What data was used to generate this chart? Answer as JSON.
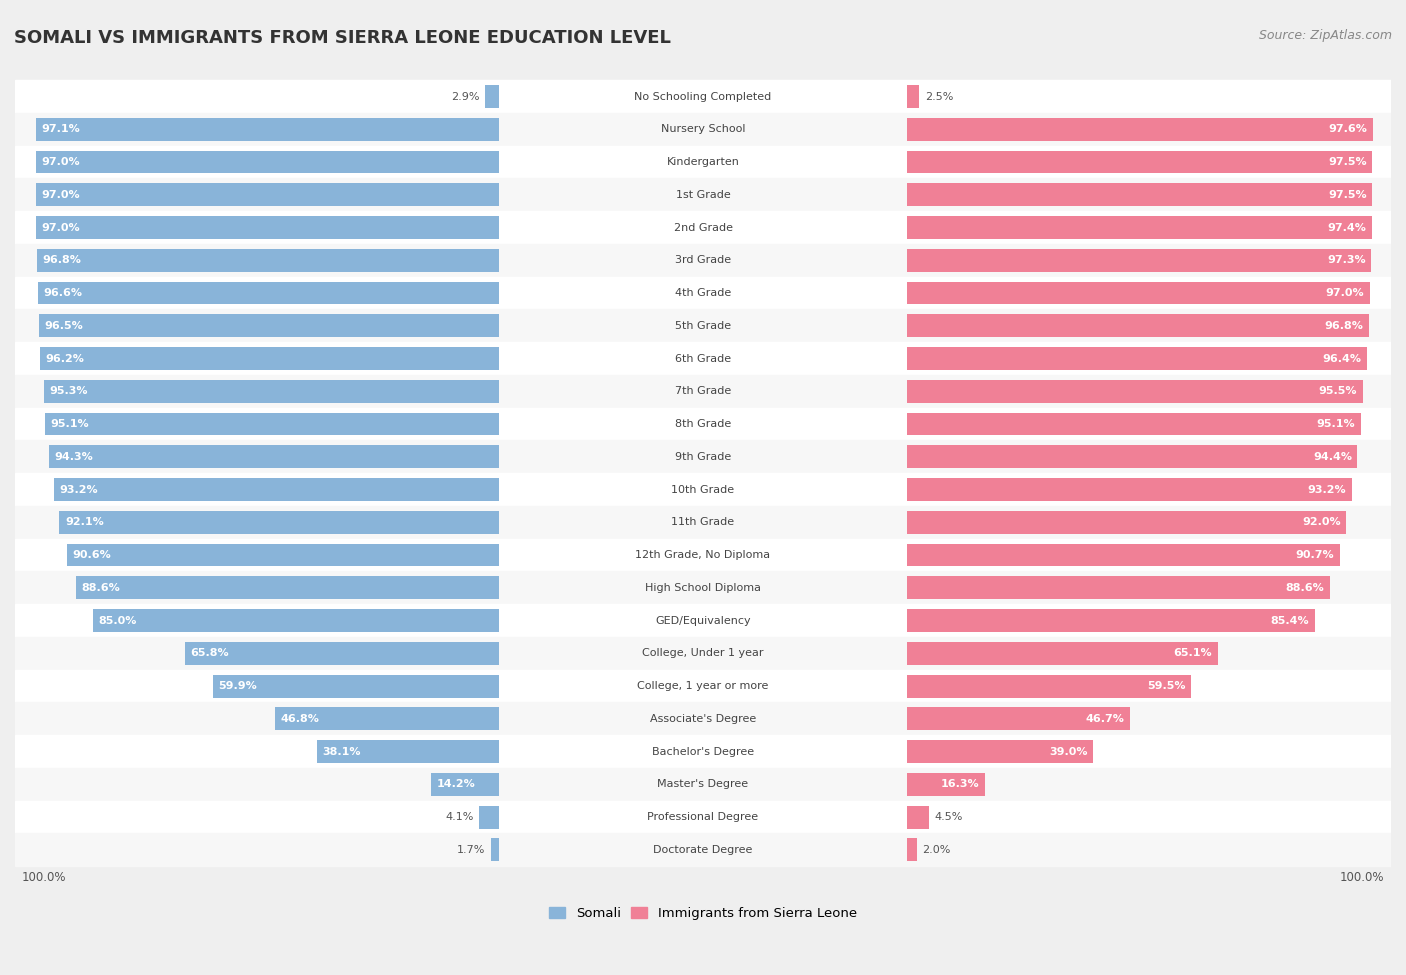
{
  "title": "SOMALI VS IMMIGRANTS FROM SIERRA LEONE EDUCATION LEVEL",
  "source": "Source: ZipAtlas.com",
  "categories": [
    "No Schooling Completed",
    "Nursery School",
    "Kindergarten",
    "1st Grade",
    "2nd Grade",
    "3rd Grade",
    "4th Grade",
    "5th Grade",
    "6th Grade",
    "7th Grade",
    "8th Grade",
    "9th Grade",
    "10th Grade",
    "11th Grade",
    "12th Grade, No Diploma",
    "High School Diploma",
    "GED/Equivalency",
    "College, Under 1 year",
    "College, 1 year or more",
    "Associate's Degree",
    "Bachelor's Degree",
    "Master's Degree",
    "Professional Degree",
    "Doctorate Degree"
  ],
  "somali": [
    2.9,
    97.1,
    97.0,
    97.0,
    97.0,
    96.8,
    96.6,
    96.5,
    96.2,
    95.3,
    95.1,
    94.3,
    93.2,
    92.1,
    90.6,
    88.6,
    85.0,
    65.8,
    59.9,
    46.8,
    38.1,
    14.2,
    4.1,
    1.7
  ],
  "sierra_leone": [
    2.5,
    97.6,
    97.5,
    97.5,
    97.4,
    97.3,
    97.0,
    96.8,
    96.4,
    95.5,
    95.1,
    94.4,
    93.2,
    92.0,
    90.7,
    88.6,
    85.4,
    65.1,
    59.5,
    46.7,
    39.0,
    16.3,
    4.5,
    2.0
  ],
  "somali_color": "#89b4d9",
  "sierra_leone_color": "#f08096",
  "bar_height": 0.7,
  "bg_color": "#efefef",
  "row_bg_even": "#f7f7f7",
  "row_bg_odd": "#ffffff",
  "title_fontsize": 13,
  "label_fontsize": 8,
  "category_fontsize": 8,
  "source_fontsize": 9
}
